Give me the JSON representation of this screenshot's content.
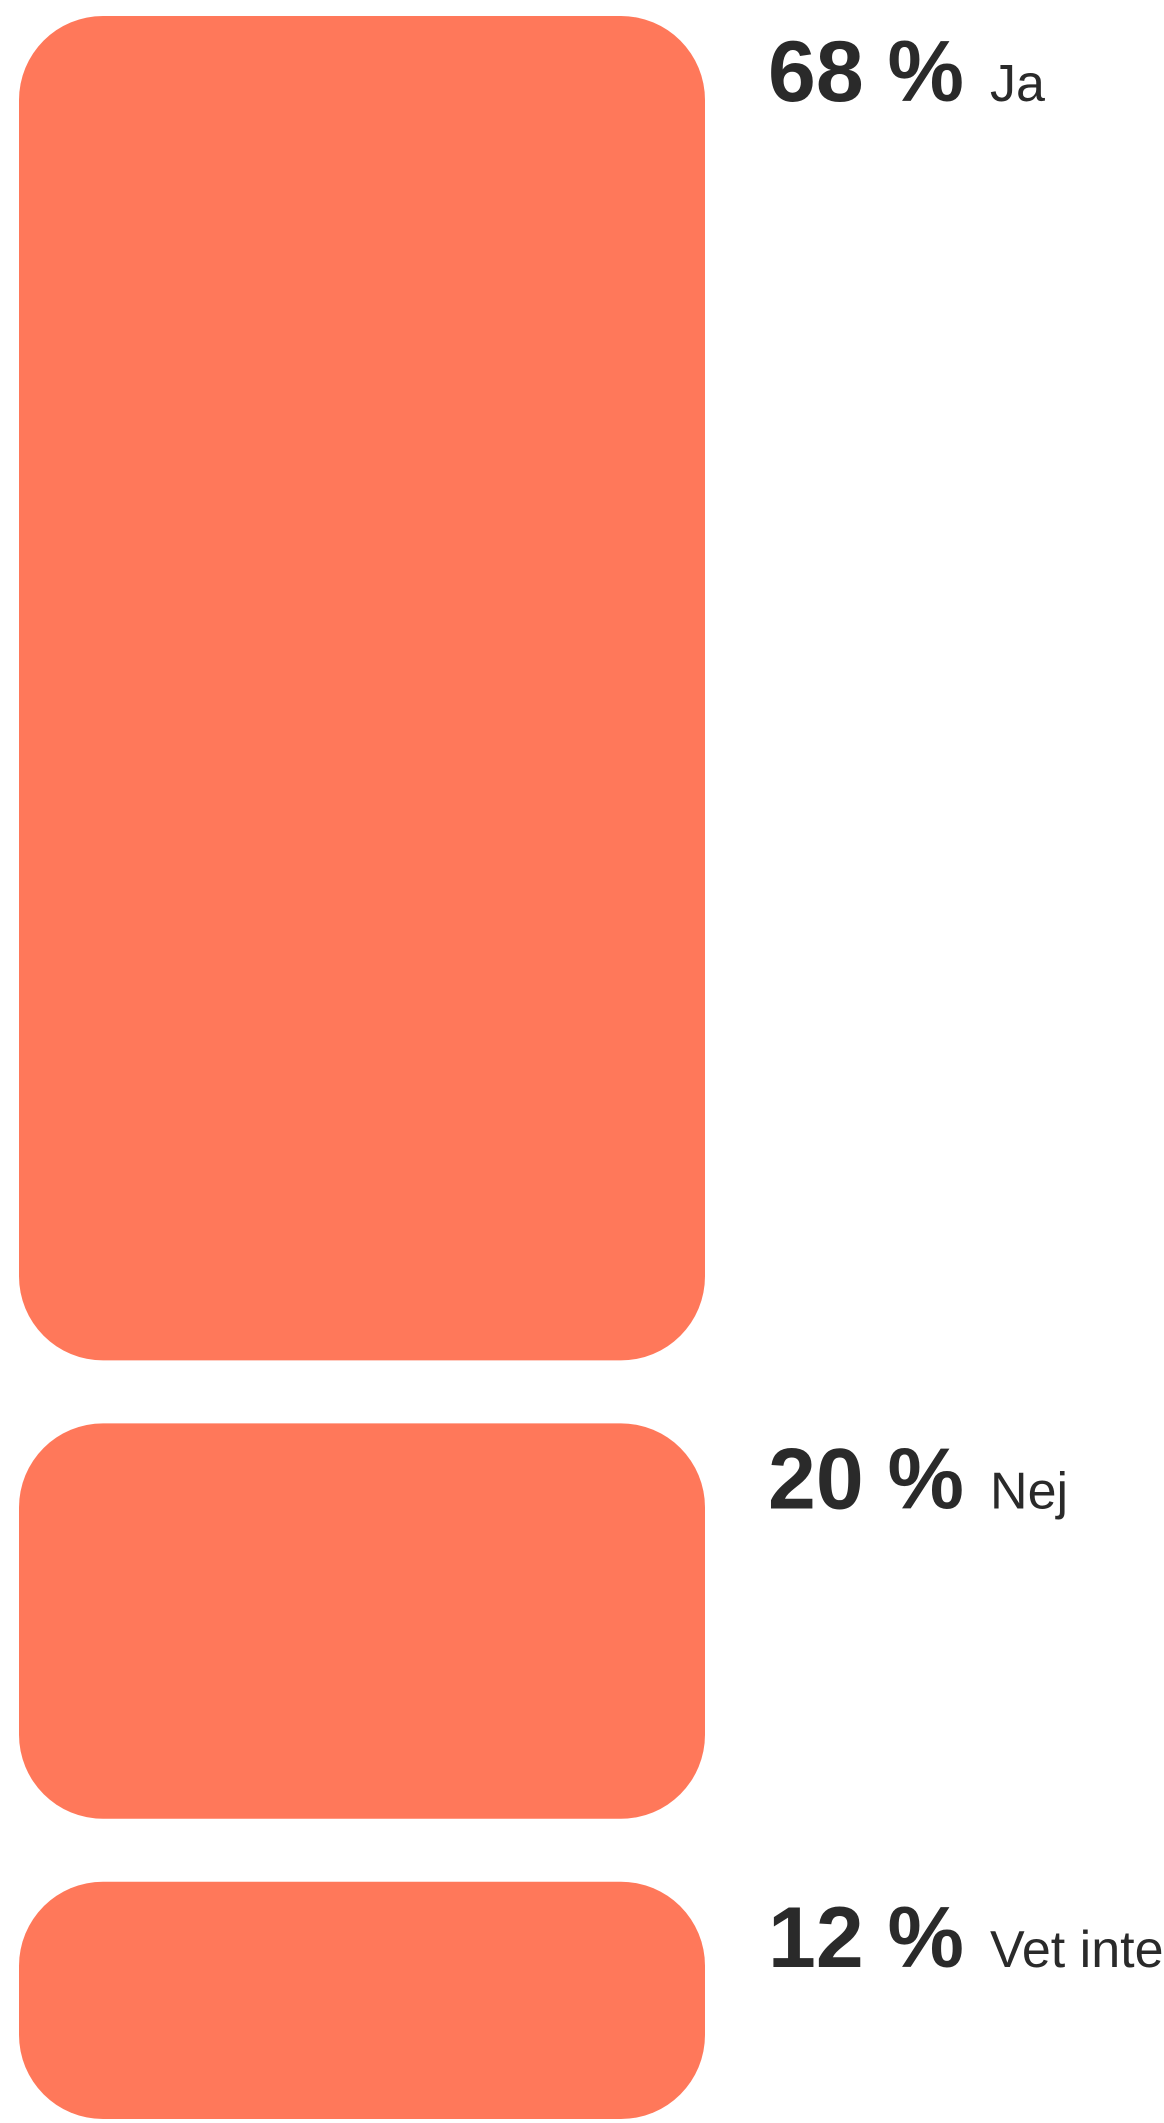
{
  "chart_data": {
    "type": "bar",
    "orientation": "stacked-vertical-list",
    "categories": [
      "Ja",
      "Nej",
      "Vet inte"
    ],
    "values": [
      68,
      20,
      12
    ],
    "value_labels": [
      "68 %",
      "20 %",
      "12 %"
    ],
    "color": "#ff785a"
  }
}
